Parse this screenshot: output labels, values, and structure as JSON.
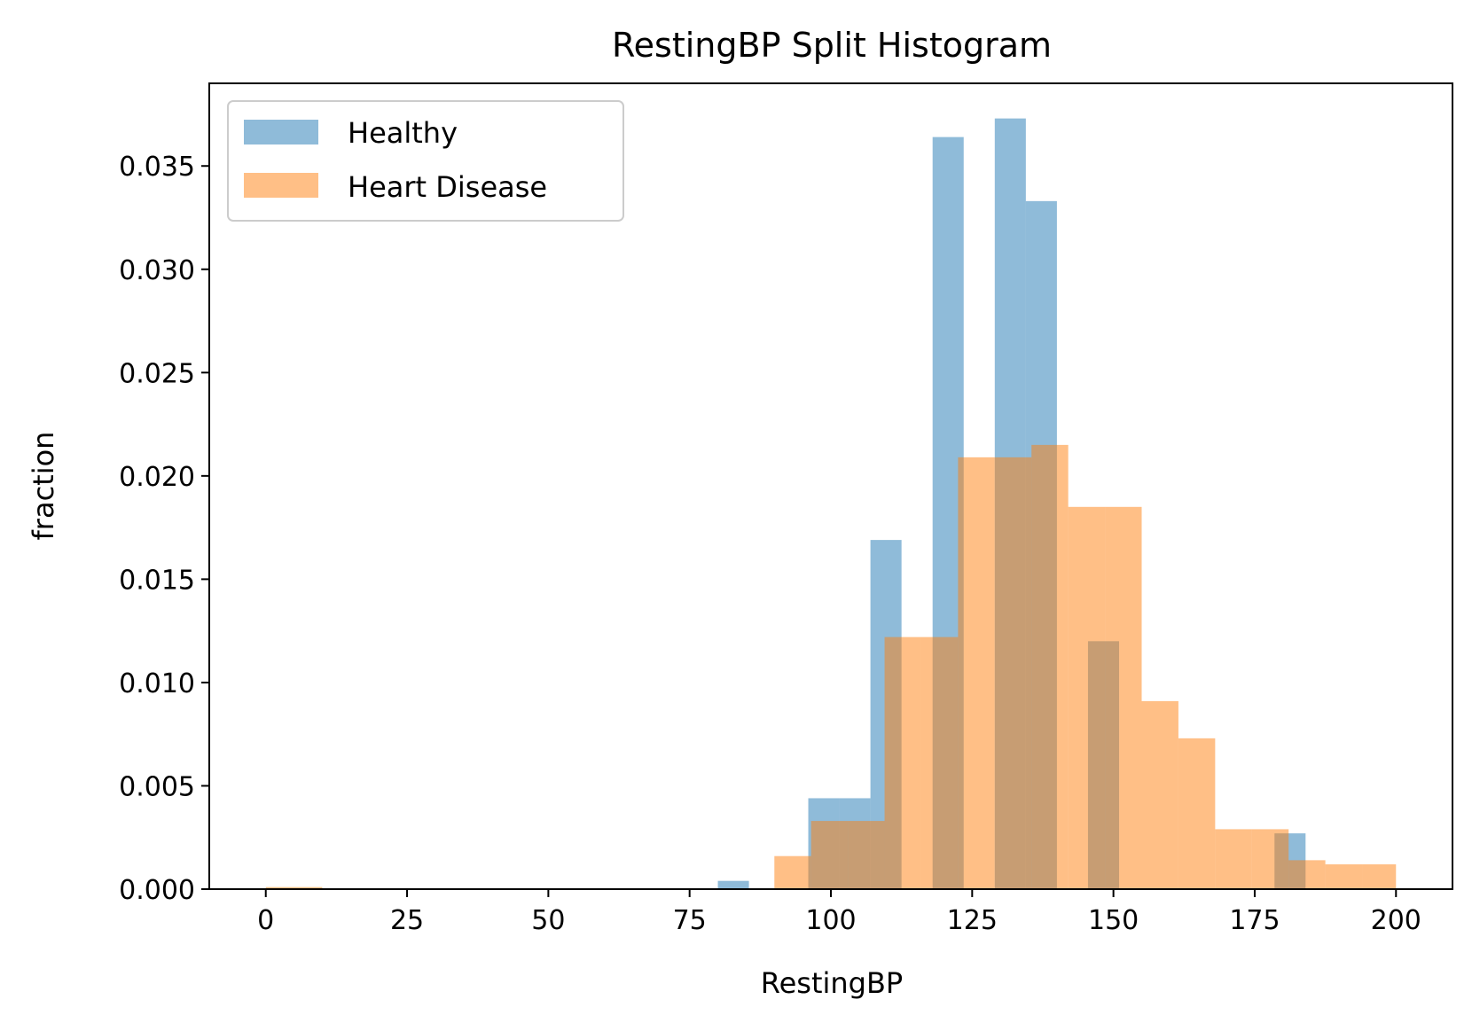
{
  "chart_data": {
    "type": "bar",
    "title": "RestingBP Split Histogram",
    "xlabel": "RestingBP",
    "ylabel": "fraction",
    "xlim": [
      -10,
      210
    ],
    "ylim": [
      0,
      0.039
    ],
    "grid": false,
    "legend_position": "top-left",
    "x_ticks": [
      0,
      25,
      50,
      75,
      100,
      125,
      150,
      175,
      200
    ],
    "y_ticks": [
      0.0,
      0.005,
      0.01,
      0.015,
      0.02,
      0.025,
      0.03,
      0.035
    ],
    "y_tick_labels": [
      "0.000",
      "0.005",
      "0.010",
      "0.015",
      "0.020",
      "0.025",
      "0.030",
      "0.035"
    ],
    "series": [
      {
        "name": "Healthy",
        "color": "#1f77b4",
        "opacity": 0.5,
        "bins": [
          {
            "x0": 80,
            "x1": 85.5,
            "value": 0.0004
          },
          {
            "x0": 96,
            "x1": 101.5,
            "value": 0.0044
          },
          {
            "x0": 101.5,
            "x1": 107,
            "value": 0.0044
          },
          {
            "x0": 107,
            "x1": 112.5,
            "value": 0.0169
          },
          {
            "x0": 112.5,
            "x1": 118,
            "value": 0.0
          },
          {
            "x0": 118,
            "x1": 123.5,
            "value": 0.0364
          },
          {
            "x0": 123.5,
            "x1": 129,
            "value": 0.0
          },
          {
            "x0": 129,
            "x1": 134.5,
            "value": 0.0373
          },
          {
            "x0": 134.5,
            "x1": 140,
            "value": 0.0333
          },
          {
            "x0": 140,
            "x1": 145.5,
            "value": 0.0
          },
          {
            "x0": 145.5,
            "x1": 151,
            "value": 0.012
          },
          {
            "x0": 151,
            "x1": 156.5,
            "value": 0.0
          },
          {
            "x0": 156.5,
            "x1": 162,
            "value": 0.0
          },
          {
            "x0": 162,
            "x1": 167.5,
            "value": 0.0
          },
          {
            "x0": 167.5,
            "x1": 173,
            "value": 0.0
          },
          {
            "x0": 173,
            "x1": 178.5,
            "value": 0.0
          },
          {
            "x0": 178.5,
            "x1": 184,
            "value": 0.0027
          }
        ]
      },
      {
        "name": "Heart Disease",
        "color": "#ff7f0e",
        "opacity": 0.5,
        "bins": [
          {
            "x0": 0,
            "x1": 10,
            "value": 0.0001
          },
          {
            "x0": 90,
            "x1": 96.5,
            "value": 0.0016
          },
          {
            "x0": 96.5,
            "x1": 103,
            "value": 0.0033
          },
          {
            "x0": 103,
            "x1": 109.5,
            "value": 0.0033
          },
          {
            "x0": 109.5,
            "x1": 116,
            "value": 0.0122
          },
          {
            "x0": 116,
            "x1": 122.5,
            "value": 0.0122
          },
          {
            "x0": 122.5,
            "x1": 129,
            "value": 0.0209
          },
          {
            "x0": 129,
            "x1": 135.5,
            "value": 0.0209
          },
          {
            "x0": 135.5,
            "x1": 142,
            "value": 0.0215
          },
          {
            "x0": 142,
            "x1": 148.5,
            "value": 0.0185
          },
          {
            "x0": 148.5,
            "x1": 155,
            "value": 0.0185
          },
          {
            "x0": 155,
            "x1": 161.5,
            "value": 0.0091
          },
          {
            "x0": 161.5,
            "x1": 168,
            "value": 0.0073
          },
          {
            "x0": 168,
            "x1": 174.5,
            "value": 0.0029
          },
          {
            "x0": 174.5,
            "x1": 181,
            "value": 0.0029
          },
          {
            "x0": 181,
            "x1": 187.5,
            "value": 0.0014
          },
          {
            "x0": 187.5,
            "x1": 194,
            "value": 0.0012
          },
          {
            "x0": 194,
            "x1": 200,
            "value": 0.0012
          }
        ]
      },
      {
        "name": "",
        "color": "#8f8460",
        "opacity": 1,
        "bins": []
      }
    ]
  }
}
